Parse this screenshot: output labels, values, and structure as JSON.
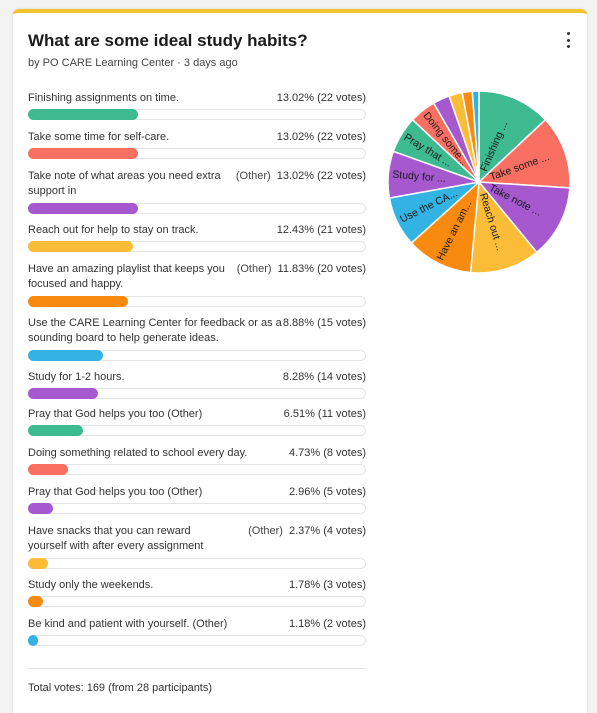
{
  "poll": {
    "question": "What are some ideal study habits?",
    "byline": "by PO CARE Learning Center · 3 days ago",
    "total": "Total votes: 169 (from 28 participants)",
    "options": [
      {
        "label": "Finishing assignments on time.",
        "other": "",
        "stat": "13.02% (22 votes)",
        "percent": 13.02,
        "color": "#3dba8f",
        "slice": "Finishing ..."
      },
      {
        "label": "Take some time for self-care.",
        "other": "",
        "stat": "13.02% (22 votes)",
        "percent": 13.02,
        "color": "#f96f62",
        "slice": "Take some ..."
      },
      {
        "label": "Take note of what areas you need extra support in",
        "other": "(Other)",
        "stat": "13.02% (22 votes)",
        "percent": 13.02,
        "color": "#a658cf",
        "slice": "Take note ..."
      },
      {
        "label": "Reach out for help to stay on track.",
        "other": "",
        "stat": "12.43% (21 votes)",
        "percent": 12.43,
        "color": "#fbbd38",
        "slice": "Reach out ..."
      },
      {
        "label": "Have an amazing playlist that keeps you focused and happy.",
        "other": "(Other)",
        "stat": "11.83% (20 votes)",
        "percent": 11.83,
        "color": "#f98a10",
        "slice": "Have an am..."
      },
      {
        "label": "Use the CARE Learning Center for feedback or as a sounding board to help generate ideas.",
        "other": "",
        "stat": "8.88% (15 votes)",
        "percent": 8.88,
        "color": "#33b3e3",
        "slice": "Use the CA..."
      },
      {
        "label": "Study for 1-2 hours.",
        "other": "",
        "stat": "8.28% (14 votes)",
        "percent": 8.28,
        "color": "#a658cf",
        "slice": "Study for ..."
      },
      {
        "label": "Pray that God helps you too (Other)",
        "other": "",
        "stat": "6.51% (11 votes)",
        "percent": 6.51,
        "color": "#3dba8f",
        "slice": "Pray that ..."
      },
      {
        "label": "Doing something related to school every day.",
        "other": "",
        "stat": "4.73% (8 votes)",
        "percent": 4.73,
        "color": "#f96f62",
        "slice": "Doing some..."
      },
      {
        "label": "Pray that God helps you too (Other)",
        "other": "",
        "stat": "2.96% (5 votes)",
        "percent": 2.96,
        "color": "#a658cf",
        "slice": ""
      },
      {
        "label": "Have snacks that you can reward yourself with after every assignment",
        "other": "(Other)",
        "stat": "2.37% (4 votes)",
        "percent": 2.37,
        "color": "#fbbd38",
        "slice": ""
      },
      {
        "label": "Study only the weekends.",
        "other": "",
        "stat": "1.78% (3 votes)",
        "percent": 1.78,
        "color": "#f98a10",
        "slice": ""
      },
      {
        "label": "Be kind and patient with yourself. (Other)",
        "other": "",
        "stat": "1.18% (2 votes)",
        "percent": 1.18,
        "color": "#33b3e3",
        "slice": ""
      }
    ]
  },
  "icons": {
    "menu": "more-vertical-icon"
  }
}
